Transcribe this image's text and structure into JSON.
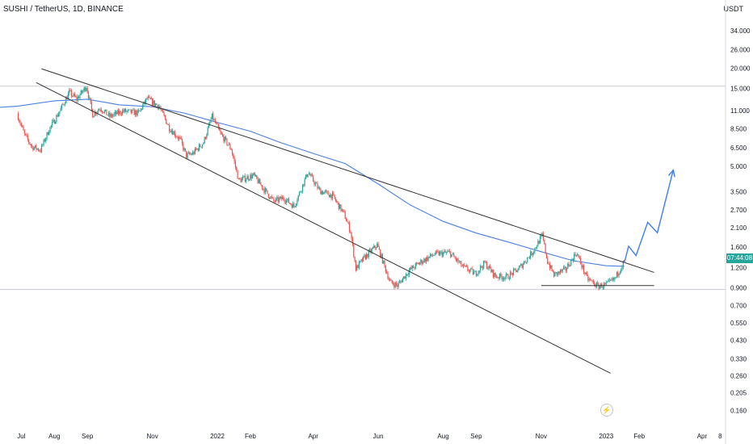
{
  "header": {
    "title": "SUSHI / TetherUS, 1D, BINANCE",
    "unit": "USDT"
  },
  "price_badge": {
    "time": "07:44:08",
    "color": "#26a69a"
  },
  "colors": {
    "up": "#26a69a",
    "down": "#ef5350",
    "ma": "#4a7fe0",
    "trend": "#333333",
    "projection": "#3b7df0",
    "hline": "#c9ccd4"
  },
  "chart_data": {
    "type": "candlestick",
    "exchange": "BINANCE",
    "timeframe": "1D",
    "y_scale": "log",
    "y_ticks": [
      "34.000",
      "26.000",
      "20.000",
      "15.000",
      "11.000",
      "8.500",
      "6.500",
      "5.000",
      "3.500",
      "2.700",
      "2.100",
      "1.600",
      "1.200",
      "0.900",
      "0.700",
      "0.550",
      "0.430",
      "0.330",
      "0.260",
      "0.205",
      "0.160"
    ],
    "x_ticks": [
      "Jul",
      "Aug",
      "Sep",
      "Nov",
      "2022",
      "Feb",
      "Apr",
      "Jun",
      "Aug",
      "Sep",
      "Nov",
      "2023",
      "Feb",
      "Apr",
      "8"
    ],
    "price_path": [
      [
        "2021-06-28",
        10.5
      ],
      [
        "2021-07-05",
        7.8
      ],
      [
        "2021-07-12",
        6.6
      ],
      [
        "2021-07-20",
        6.3
      ],
      [
        "2021-07-28",
        8.4
      ],
      [
        "2021-08-06",
        10.6
      ],
      [
        "2021-08-16",
        14.2
      ],
      [
        "2021-08-23",
        12.9
      ],
      [
        "2021-09-01",
        15.5
      ],
      [
        "2021-09-07",
        10.4
      ],
      [
        "2021-09-14",
        11.4
      ],
      [
        "2021-09-23",
        10.1
      ],
      [
        "2021-10-05",
        10.9
      ],
      [
        "2021-10-20",
        10.6
      ],
      [
        "2021-10-28",
        13.0
      ],
      [
        "2021-11-08",
        11.7
      ],
      [
        "2021-11-18",
        8.6
      ],
      [
        "2021-11-28",
        7.3
      ],
      [
        "2021-12-04",
        5.8
      ],
      [
        "2021-12-10",
        6.0
      ],
      [
        "2021-12-20",
        7.0
      ],
      [
        "2021-12-28",
        10.1
      ],
      [
        "2022-01-05",
        7.9
      ],
      [
        "2022-01-15",
        6.4
      ],
      [
        "2022-01-22",
        4.1
      ],
      [
        "2022-02-05",
        4.4
      ],
      [
        "2022-02-15",
        3.6
      ],
      [
        "2022-02-24",
        3.05
      ],
      [
        "2022-03-05",
        3.2
      ],
      [
        "2022-03-15",
        2.85
      ],
      [
        "2022-03-28",
        4.6
      ],
      [
        "2022-04-08",
        3.55
      ],
      [
        "2022-04-20",
        3.3
      ],
      [
        "2022-05-01",
        2.55
      ],
      [
        "2022-05-07",
        2.0
      ],
      [
        "2022-05-12",
        1.18
      ],
      [
        "2022-05-20",
        1.38
      ],
      [
        "2022-06-01",
        1.65
      ],
      [
        "2022-06-13",
        0.98
      ],
      [
        "2022-06-20",
        0.93
      ],
      [
        "2022-07-01",
        1.15
      ],
      [
        "2022-07-12",
        1.3
      ],
      [
        "2022-07-25",
        1.45
      ],
      [
        "2022-08-08",
        1.48
      ],
      [
        "2022-08-20",
        1.22
      ],
      [
        "2022-09-01",
        1.1
      ],
      [
        "2022-09-10",
        1.28
      ],
      [
        "2022-09-20",
        1.06
      ],
      [
        "2022-10-01",
        1.05
      ],
      [
        "2022-10-12",
        1.18
      ],
      [
        "2022-10-25",
        1.5
      ],
      [
        "2022-11-03",
        1.88
      ],
      [
        "2022-11-08",
        1.3
      ],
      [
        "2022-11-14",
        1.08
      ],
      [
        "2022-11-25",
        1.17
      ],
      [
        "2022-12-05",
        1.48
      ],
      [
        "2022-12-15",
        1.03
      ],
      [
        "2022-12-25",
        0.92
      ],
      [
        "2023-01-02",
        0.94
      ],
      [
        "2023-01-10",
        1.02
      ],
      [
        "2023-01-18",
        1.28
      ]
    ],
    "series": [
      {
        "name": "MA",
        "points": [
          [
            "2021-06-28",
            11.7
          ],
          [
            "2021-08-01",
            12.6
          ],
          [
            "2021-09-01",
            12.9
          ],
          [
            "2021-10-01",
            11.9
          ],
          [
            "2021-11-01",
            11.6
          ],
          [
            "2021-12-01",
            10.6
          ],
          [
            "2022-01-01",
            9.3
          ],
          [
            "2022-02-01",
            8.2
          ],
          [
            "2022-03-01",
            7.0
          ],
          [
            "2022-04-01",
            6.0
          ],
          [
            "2022-05-01",
            5.2
          ],
          [
            "2022-06-01",
            3.9
          ],
          [
            "2022-07-01",
            2.9
          ],
          [
            "2022-08-01",
            2.3
          ],
          [
            "2022-09-01",
            1.95
          ],
          [
            "2022-10-01",
            1.72
          ],
          [
            "2022-11-01",
            1.5
          ],
          [
            "2022-12-01",
            1.32
          ],
          [
            "2023-01-01",
            1.23
          ],
          [
            "2023-01-18",
            1.22
          ]
        ]
      }
    ],
    "annotations": {
      "trendlines": [
        [
          [
            "2021-07-20",
            19.8
          ],
          [
            "2023-02-15",
            1.12
          ]
        ],
        [
          [
            "2021-07-15",
            16.3
          ],
          [
            "2023-01-05",
            0.27
          ]
        ]
      ],
      "support_line": [
        [
          "2022-11-01",
          0.93
        ],
        [
          "2023-02-15",
          0.93
        ]
      ],
      "projection": [
        [
          "2023-01-18",
          1.28
        ],
        [
          "2023-01-22",
          1.62
        ],
        [
          "2023-01-29",
          1.42
        ],
        [
          "2023-02-09",
          2.27
        ],
        [
          "2023-02-18",
          1.96
        ],
        [
          "2023-03-05",
          4.75
        ]
      ],
      "horizontal_levels": [
        15.5,
        0.88
      ]
    }
  }
}
